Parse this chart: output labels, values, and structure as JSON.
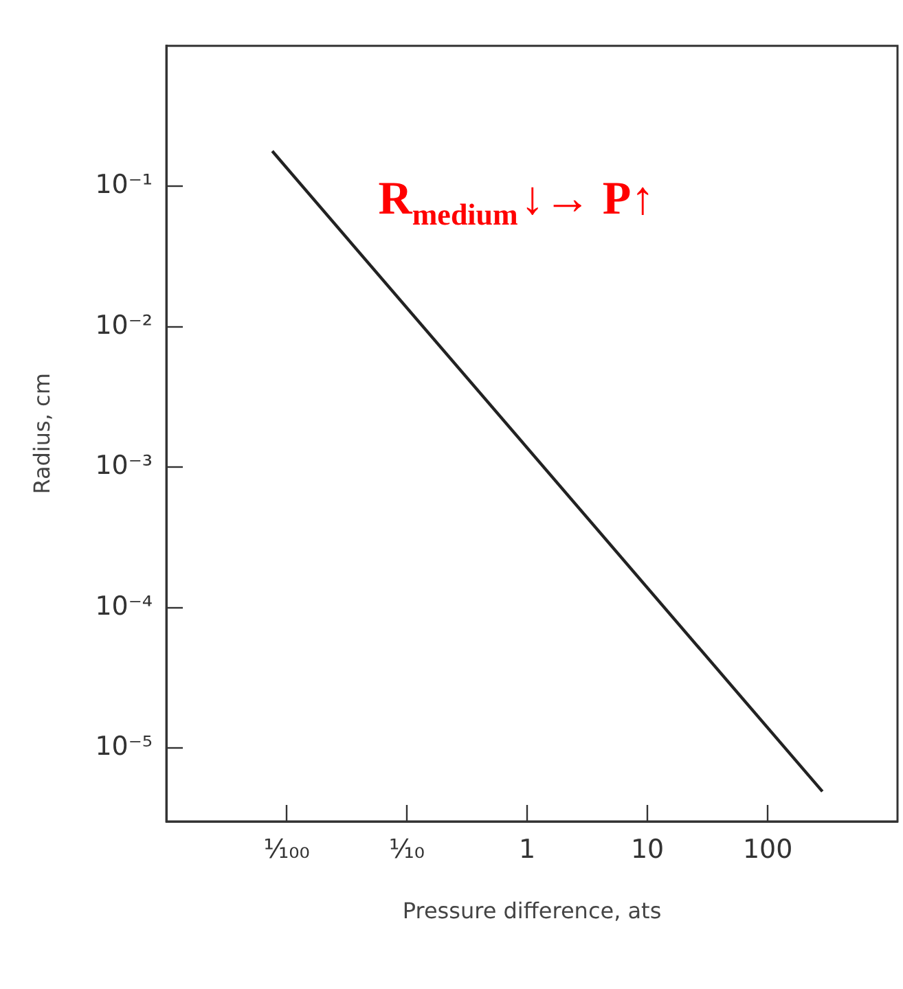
{
  "chart_data": {
    "type": "line",
    "xlabel": "Pressure difference, ats",
    "ylabel": "Radius, cm",
    "annotations": [
      "R$_{medium}$↓→ P↑"
    ],
    "x": [
      0.0076,
      285
    ],
    "series": [
      {
        "color": "#222222",
        "values": [
          0.178,
          4.9e-06
        ]
      }
    ],
    "log": "xy",
    "marker": "none",
    "line_style": "solid",
    "xlim": [
      0.001,
      1200
    ],
    "ylim": [
      3e-06,
      1
    ],
    "xticks": [
      {
        "value": 0.01,
        "label": "¹⁄₁₀₀"
      },
      {
        "value": 0.1,
        "label": "¹⁄₁₀"
      },
      1,
      10,
      100
    ],
    "yticks": [
      {
        "value": 0.1,
        "label": "10⁻¹"
      },
      {
        "value": 0.01,
        "label": "10⁻²"
      },
      {
        "value": 0.001,
        "label": "10⁻³"
      },
      {
        "value": 0.0001,
        "label": "10⁻⁴"
      },
      {
        "value": 1e-05,
        "label": "10⁻⁵"
      }
    ]
  }
}
